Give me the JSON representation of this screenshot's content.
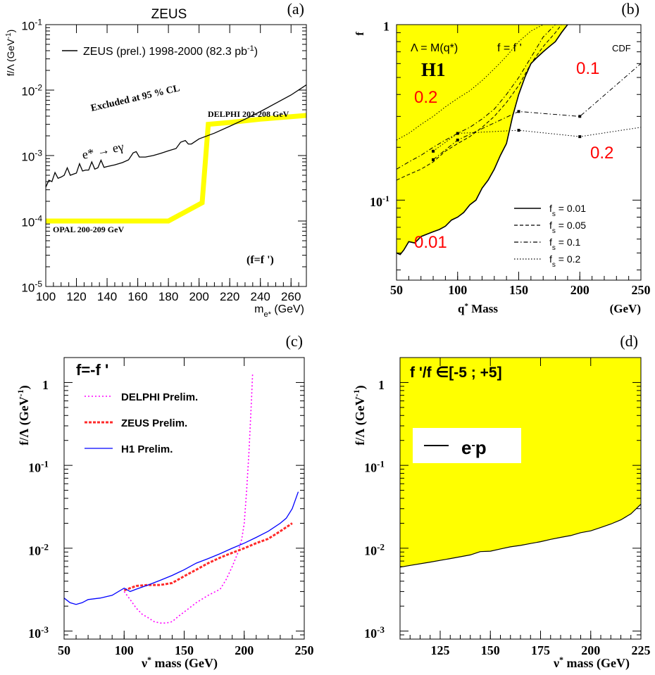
{
  "chart_data": [
    {
      "type": "line",
      "panel_label": "(a)",
      "title": "ZEUS",
      "ylabel": "f/Λ (GeV⁻¹)",
      "xlabel": "m_e* (GeV)",
      "xlim": [
        100,
        270
      ],
      "ylim": [
        1e-05,
        0.1
      ],
      "y_log": true,
      "x_ticks": [
        "100",
        "120",
        "140",
        "160",
        "180",
        "200",
        "220",
        "240",
        "260"
      ],
      "y_ticks": [
        {
          "base": "10",
          "exp": "-5"
        },
        {
          "base": "10",
          "exp": "-4"
        },
        {
          "base": "10",
          "exp": "-3"
        },
        {
          "base": "10",
          "exp": "-2"
        },
        {
          "base": "10",
          "exp": "-1"
        }
      ],
      "legend": {
        "text": "ZEUS (prel.) 1998-2000 (82.3 pb",
        "sup": "-1",
        "tail": ")"
      },
      "annotations": {
        "excluded": "Excluded at 95 % CL",
        "delphi": "DELPHI 202-208 GeV",
        "process": "e* → eγ",
        "opal": "OPAL 200-209 GeV",
        "coupling": "(f=f ')"
      },
      "series": [
        {
          "name": "ZEUS (prel.) 1998-2000 (82.3 pb-1)",
          "color": "#000000",
          "x": [
            100,
            102,
            104,
            106,
            108,
            110,
            112,
            114,
            116,
            118,
            120,
            122,
            124,
            126,
            128,
            130,
            132,
            134,
            136,
            138,
            140,
            145,
            150,
            154,
            157,
            159,
            161,
            165,
            170,
            175,
            180,
            185,
            188,
            191,
            193,
            195,
            200,
            210,
            220,
            230,
            240,
            250,
            260,
            270
          ],
          "y": [
            0.00033,
            0.00042,
            0.0004,
            0.00055,
            0.00045,
            0.00047,
            0.0005,
            0.00065,
            0.0005,
            0.00052,
            0.00054,
            0.00075,
            0.00058,
            0.0006,
            0.0006,
            0.0008,
            0.00062,
            0.00065,
            0.00085,
            0.00066,
            0.00068,
            0.00072,
            0.00078,
            0.00086,
            0.0011,
            0.00115,
            0.00095,
            0.00095,
            0.001,
            0.00108,
            0.00118,
            0.00128,
            0.0016,
            0.0017,
            0.0015,
            0.0015,
            0.0018,
            0.0022,
            0.0028,
            0.0036,
            0.0047,
            0.0063,
            0.0084,
            0.012
          ]
        },
        {
          "name": "OPAL 200-209 GeV / DELPHI 202-208 GeV",
          "color": "#ffff00",
          "x": [
            100,
            180,
            202,
            206,
            220,
            240,
            270
          ],
          "y": [
            0.0001,
            0.0001,
            0.00019,
            0.003,
            0.0032,
            0.0036,
            0.0041
          ]
        }
      ]
    },
    {
      "type": "area",
      "panel_label": "(b)",
      "ylabel": "f",
      "xlabel": "q* Mass",
      "xlabel_unit": "(GeV)",
      "xlim": [
        50,
        250
      ],
      "ylim": [
        0.035,
        1
      ],
      "y_log": true,
      "x_ticks": [
        "50",
        "100",
        "150",
        "200",
        "250"
      ],
      "y_ticks": [
        {
          "base": "10",
          "exp": "-1"
        },
        {
          "base": "1",
          "exp": ""
        }
      ],
      "annotations": {
        "lambda": "Λ = M(q*)",
        "coupling": "f = f '",
        "experiment": "H1",
        "cdf": "CDF",
        "red_labels": [
          "0.2",
          "0.1",
          "0.2",
          "0.01"
        ]
      },
      "legend": [
        {
          "label": "f",
          "sub": "s",
          "value": " = 0.01",
          "dash": "solid"
        },
        {
          "label": "f",
          "sub": "s",
          "value": " = 0.05",
          "dash": "dashed"
        },
        {
          "label": "f",
          "sub": "s",
          "value": " = 0.1",
          "dash": "dashdot"
        },
        {
          "label": "f",
          "sub": "s",
          "value": " = 0.2",
          "dash": "dotted"
        }
      ],
      "series": [
        {
          "name": "fs = 0.01",
          "dash": "solid",
          "x": [
            50,
            53,
            56,
            60,
            65,
            70,
            75,
            80,
            85,
            90,
            95,
            100,
            105,
            110,
            115,
            120,
            125,
            130,
            135,
            140,
            145,
            150,
            155,
            160,
            165,
            170,
            175,
            180,
            185,
            190
          ],
          "y": [
            0.05,
            0.049,
            0.052,
            0.058,
            0.057,
            0.062,
            0.064,
            0.066,
            0.068,
            0.071,
            0.077,
            0.08,
            0.085,
            0.094,
            0.1,
            0.117,
            0.13,
            0.15,
            0.18,
            0.21,
            0.3,
            0.4,
            0.5,
            0.6,
            0.65,
            0.7,
            0.75,
            0.8,
            0.9,
            1.0
          ]
        },
        {
          "name": "fs = 0.05",
          "dash": "dashed",
          "x": [
            50,
            60,
            70,
            80,
            90,
            100,
            110,
            120,
            130,
            140,
            150,
            160,
            170,
            180,
            185
          ],
          "y": [
            0.13,
            0.14,
            0.15,
            0.165,
            0.19,
            0.21,
            0.23,
            0.26,
            0.3,
            0.36,
            0.45,
            0.6,
            0.75,
            0.9,
            1.0
          ]
        },
        {
          "name": "fs = 0.1",
          "dash": "dashdot",
          "x": [
            50,
            60,
            70,
            80,
            90,
            100,
            110,
            120,
            130,
            140,
            150,
            160,
            170,
            180
          ],
          "y": [
            0.15,
            0.165,
            0.18,
            0.2,
            0.22,
            0.24,
            0.26,
            0.29,
            0.33,
            0.4,
            0.5,
            0.65,
            0.85,
            1.0
          ]
        },
        {
          "name": "fs = 0.2",
          "dash": "dotted",
          "x": [
            50,
            60,
            70,
            80,
            90,
            100,
            110,
            120,
            130,
            140,
            150,
            160,
            170
          ],
          "y": [
            0.22,
            0.24,
            0.27,
            0.3,
            0.34,
            0.38,
            0.42,
            0.48,
            0.56,
            0.66,
            0.8,
            0.92,
            1.0
          ]
        },
        {
          "name": "CDF 0.1",
          "dash": "dashdot",
          "x": [
            80,
            100,
            150,
            200,
            250
          ],
          "y": [
            0.17,
            0.22,
            0.32,
            0.3,
            0.6
          ]
        },
        {
          "name": "CDF 0.2",
          "dash": "dotted",
          "x": [
            80,
            100,
            150,
            200,
            250
          ],
          "y": [
            0.19,
            0.24,
            0.25,
            0.23,
            0.26
          ]
        }
      ]
    },
    {
      "type": "line",
      "panel_label": "(c)",
      "title": "f=-f '",
      "ylabel": "f/Λ (GeV⁻¹)",
      "xlabel": "ν* mass (GeV)",
      "xlim": [
        50,
        250
      ],
      "ylim": [
        0.0008,
        2
      ],
      "y_log": true,
      "x_ticks": [
        "50",
        "100",
        "150",
        "200",
        "250"
      ],
      "y_ticks": [
        {
          "base": "10",
          "exp": "-3"
        },
        {
          "base": "10",
          "exp": "-2"
        },
        {
          "base": "10",
          "exp": "-1"
        },
        {
          "base": "1",
          "exp": ""
        }
      ],
      "series": [
        {
          "name": "DELPHI Prelim.",
          "color": "#ff00ff",
          "dash": "dotted",
          "x": [
            100,
            105,
            110,
            115,
            120,
            125,
            130,
            135,
            140,
            145,
            150,
            160,
            170,
            180,
            185,
            190,
            195,
            198,
            200,
            202,
            204,
            206,
            207
          ],
          "y": [
            0.003,
            0.0024,
            0.0019,
            0.0016,
            0.00145,
            0.0013,
            0.00125,
            0.00125,
            0.0013,
            0.0015,
            0.0017,
            0.0022,
            0.0027,
            0.0032,
            0.0042,
            0.006,
            0.009,
            0.013,
            0.02,
            0.05,
            0.15,
            0.6,
            1.3
          ]
        },
        {
          "name": "ZEUS Prelim.",
          "color": "#ff2a2a",
          "dash": "dashed",
          "x": [
            100,
            110,
            120,
            130,
            140,
            150,
            160,
            170,
            180,
            190,
            200,
            210,
            220,
            230,
            240
          ],
          "y": [
            0.0031,
            0.0035,
            0.0036,
            0.0036,
            0.0038,
            0.0046,
            0.0055,
            0.0066,
            0.0077,
            0.0088,
            0.01,
            0.0115,
            0.013,
            0.016,
            0.02
          ]
        },
        {
          "name": "H1 Prelim.",
          "color": "#0000ff",
          "dash": "solid",
          "x": [
            50,
            55,
            60,
            65,
            70,
            80,
            90,
            100,
            105,
            110,
            120,
            130,
            140,
            150,
            160,
            170,
            180,
            190,
            200,
            210,
            220,
            230,
            235,
            240,
            245
          ],
          "y": [
            0.0025,
            0.0022,
            0.0021,
            0.0022,
            0.0024,
            0.0025,
            0.0027,
            0.0033,
            0.003,
            0.0032,
            0.0036,
            0.0041,
            0.0047,
            0.0055,
            0.0066,
            0.0075,
            0.0086,
            0.01,
            0.0115,
            0.0135,
            0.016,
            0.02,
            0.023,
            0.03,
            0.048
          ]
        }
      ]
    },
    {
      "type": "area",
      "panel_label": "(d)",
      "title": "f '/f ∈[-5 ; +5]",
      "ylabel": "f/Λ (GeV⁻¹)",
      "xlabel": "ν* mass (GeV)",
      "xlim": [
        105,
        225
      ],
      "ylim": [
        0.0008,
        2
      ],
      "y_log": true,
      "x_ticks": [
        "125",
        "150",
        "175",
        "200",
        "225"
      ],
      "y_ticks": [
        {
          "base": "10",
          "exp": "-3"
        },
        {
          "base": "10",
          "exp": "-2"
        },
        {
          "base": "10",
          "exp": "-1"
        },
        {
          "base": "1",
          "exp": ""
        }
      ],
      "legend": {
        "label": "e",
        "sup": "-",
        "tail": "p"
      },
      "series": [
        {
          "name": "e-p",
          "color": "#000000",
          "x": [
            105,
            110,
            120,
            130,
            140,
            145,
            150,
            155,
            160,
            165,
            170,
            175,
            180,
            185,
            190,
            195,
            200,
            205,
            210,
            215,
            220,
            225
          ],
          "y": [
            0.0059,
            0.0062,
            0.0068,
            0.0075,
            0.0083,
            0.0091,
            0.0092,
            0.0098,
            0.0104,
            0.0108,
            0.0114,
            0.012,
            0.0128,
            0.0135,
            0.0142,
            0.0154,
            0.0162,
            0.0178,
            0.0196,
            0.022,
            0.026,
            0.034
          ]
        }
      ]
    }
  ]
}
